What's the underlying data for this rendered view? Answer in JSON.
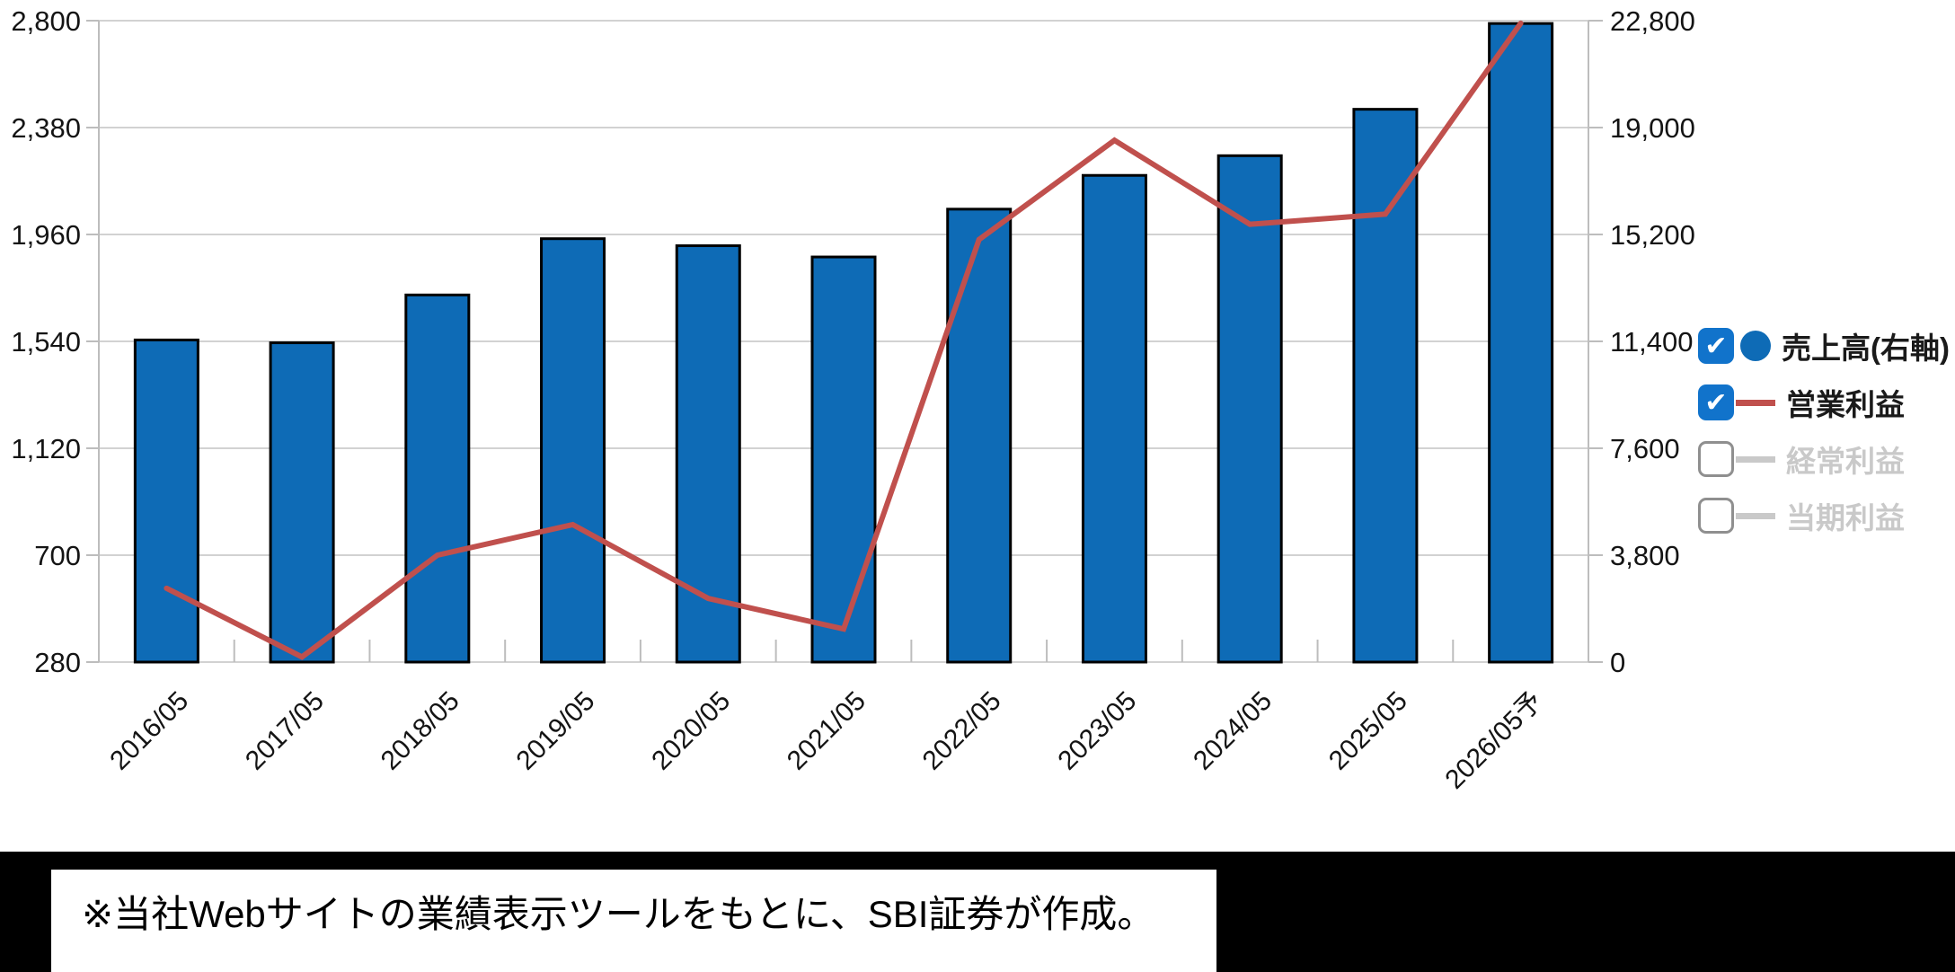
{
  "chart_data": {
    "type": "combo",
    "title": "",
    "categories": [
      "2016/05",
      "2017/05",
      "2018/05",
      "2019/05",
      "2020/05",
      "2021/05",
      "2022/05",
      "2023/05",
      "2024/05",
      "2025/05",
      "2026/05予"
    ],
    "series": [
      {
        "name": "売上高(右軸)",
        "type": "bar",
        "axis": "right",
        "color": "#0e6bb6",
        "outline": "#000000",
        "values": [
          11450,
          11350,
          13050,
          15050,
          14800,
          14400,
          16100,
          17300,
          18000,
          19650,
          22700
        ]
      },
      {
        "name": "営業利益",
        "type": "line",
        "axis": "left",
        "color": "#c0504d",
        "values": [
          570,
          300,
          700,
          820,
          530,
          410,
          1940,
          2330,
          2000,
          2040,
          2790
        ]
      }
    ],
    "left_axis": {
      "min": 280,
      "max": 2800,
      "tick_step": 420,
      "labels": [
        "2,800",
        "2,380",
        "1,960",
        "1,540",
        "1,120",
        "700",
        "280"
      ]
    },
    "right_axis": {
      "min": 0,
      "max": 22800,
      "tick_step": 3800,
      "labels": [
        "22,800",
        "19,000",
        "15,200",
        "11,400",
        "7,600",
        "3,800",
        "0"
      ]
    },
    "grid": true,
    "legend_position": "right",
    "colors": {
      "grid": "#d2d2d2",
      "axis": "#bdbdbd",
      "label": "#141414"
    }
  },
  "legend": {
    "items": [
      {
        "label": "売上高(右軸)",
        "checked": true,
        "swatch": "circle",
        "color": "#0e6bb6",
        "text_color": "#1a1a1a"
      },
      {
        "label": "営業利益",
        "checked": true,
        "swatch": "line",
        "color": "#c0504d",
        "text_color": "#1a1a1a"
      },
      {
        "label": "経常利益",
        "checked": false,
        "swatch": "line",
        "color": "#c9c9c9",
        "text_color": "#c9c9c9"
      },
      {
        "label": "当期利益",
        "checked": false,
        "swatch": "line",
        "color": "#c9c9c9",
        "text_color": "#c9c9c9"
      }
    ]
  },
  "note": {
    "text": "※当社Webサイトの業績表示ツールをもとに、SBI証券が作成。"
  }
}
